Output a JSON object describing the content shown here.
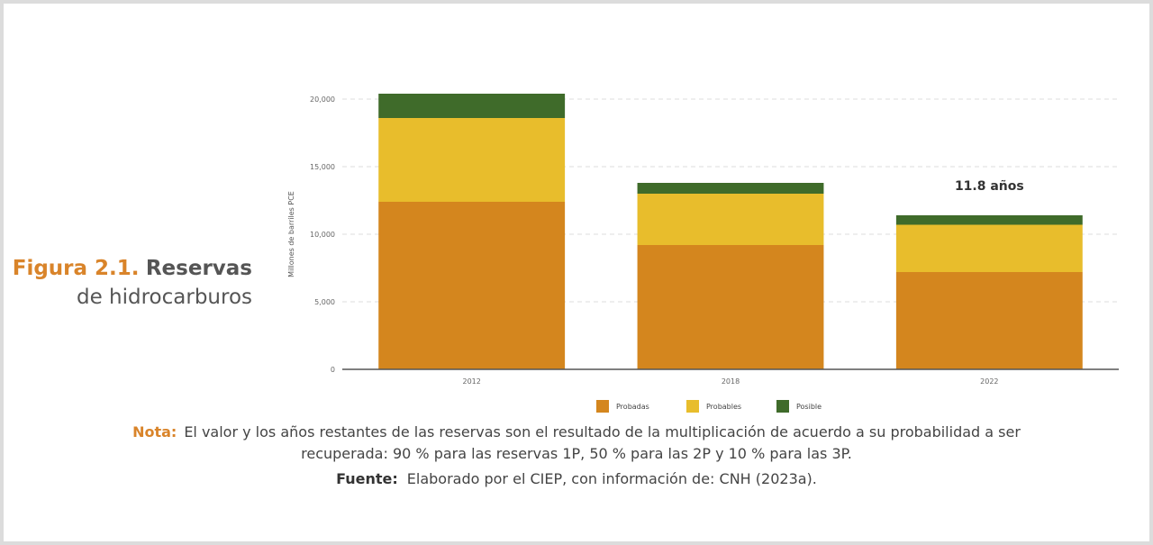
{
  "figure": {
    "label": "Figura 2.1.",
    "title_word": "Reservas",
    "title_rest": "de hidrocarburos"
  },
  "note": {
    "label": "Nota:",
    "line1": "El valor y los años restantes de las reservas son el resultado de la multiplicación de acuerdo a su probabilidad a ser",
    "line2": "recuperada: 90 % para las reservas 1P, 50 % para las 2P y 10 % para las 3P."
  },
  "source": {
    "label": "Fuente:",
    "text": "Elaborado por el CIEP, con información de: CNH (2023a)."
  },
  "chart_data": {
    "type": "bar",
    "stacked": true,
    "categories": [
      "2012",
      "2018",
      "2022"
    ],
    "series": [
      {
        "name": "Probadas",
        "color": "#d4861e",
        "values": [
          12400,
          9200,
          7200
        ]
      },
      {
        "name": "Probables",
        "color": "#e8bd2c",
        "values": [
          6200,
          3800,
          3500
        ]
      },
      {
        "name": "Posible",
        "color": "#3f6b2a",
        "values": [
          1800,
          800,
          700
        ]
      }
    ],
    "ylabel": "Millones de barriles PCE",
    "ylim": [
      0,
      20000
    ],
    "yticks": [
      0,
      5000,
      10000,
      15000,
      20000
    ],
    "ytick_labels": [
      "0",
      "5,000",
      "10,000",
      "15,000",
      "20,000"
    ],
    "annotations": [
      {
        "category": "2022",
        "text": "11.8 años"
      }
    ],
    "grid": true,
    "legend": "bottom"
  }
}
